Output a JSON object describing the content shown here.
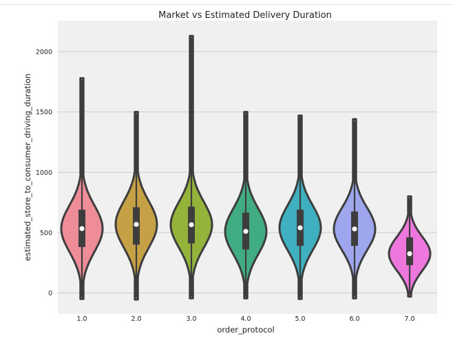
{
  "chart_data": {
    "type": "violin",
    "title": "Market vs Estimated Delivery Duration",
    "xlabel": "order_protocol",
    "ylabel": "estimated_store_to_consumer_driving_duration",
    "categories": [
      "1.0",
      "2.0",
      "3.0",
      "4.0",
      "5.0",
      "6.0",
      "7.0"
    ],
    "yticks": [
      0,
      500,
      1000,
      1500,
      2000
    ],
    "ylim": [
      -150,
      2240
    ],
    "grid": true,
    "colors": [
      "#ee8d98",
      "#c6a045",
      "#93b33a",
      "#41ac82",
      "#3eb0c0",
      "#9ea7ee",
      "#ee77dd"
    ],
    "violins": [
      {
        "category": "1.0",
        "min": -50,
        "max": 1780,
        "q1": 380,
        "median": 533,
        "q3": 690
      },
      {
        "category": "2.0",
        "min": -55,
        "max": 1500,
        "q1": 400,
        "median": 568,
        "q3": 710
      },
      {
        "category": "3.0",
        "min": -45,
        "max": 2130,
        "q1": 410,
        "median": 565,
        "q3": 715
      },
      {
        "category": "4.0",
        "min": -45,
        "max": 1500,
        "q1": 360,
        "median": 510,
        "q3": 665
      },
      {
        "category": "5.0",
        "min": -50,
        "max": 1470,
        "q1": 390,
        "median": 540,
        "q3": 690
      },
      {
        "category": "6.0",
        "min": -45,
        "max": 1440,
        "q1": 390,
        "median": 530,
        "q3": 675
      },
      {
        "category": "7.0",
        "min": -30,
        "max": 800,
        "q1": 230,
        "median": 325,
        "q3": 460
      }
    ]
  }
}
